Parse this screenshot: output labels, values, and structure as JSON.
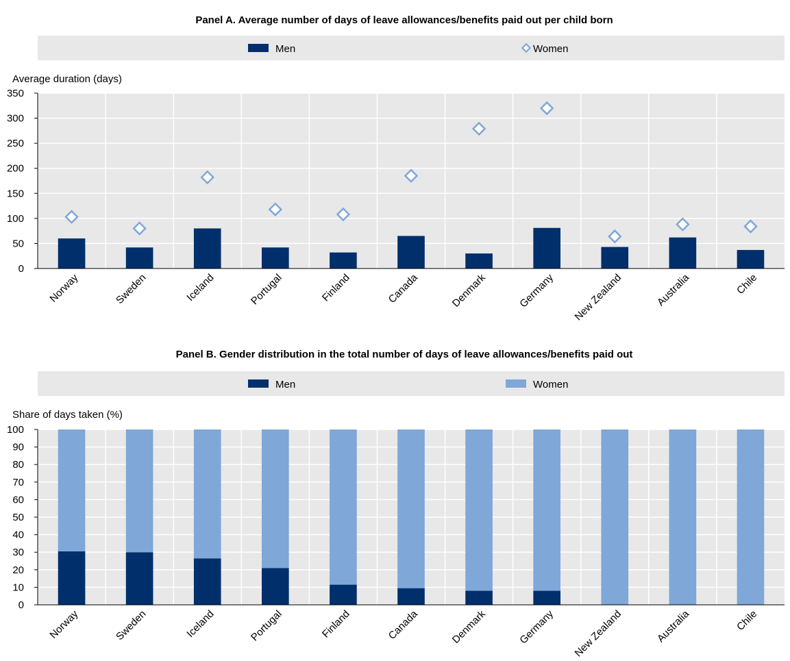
{
  "colors": {
    "men": "#002f6c",
    "women_bar": "#7fa7d8",
    "women_marker": "#7fa7d8",
    "plot_bg": "#e8e8e8",
    "legend_bg": "#e8e8e8",
    "gridline": "#ffffff",
    "axis": "#000000"
  },
  "chart_data": [
    {
      "type": "bar",
      "title": "Panel A. Average number of days of leave allowances/benefits paid out per child born",
      "ylabel": "Average duration (days)",
      "ylim": [
        0,
        350
      ],
      "yticks": [
        0,
        50,
        100,
        150,
        200,
        250,
        300,
        350
      ],
      "categories": [
        "Norway",
        "Sweden",
        "Iceland",
        "Portugal",
        "Finland",
        "Canada",
        "Denmark",
        "Germany",
        "New Zealand",
        "Australia",
        "Chile"
      ],
      "series": [
        {
          "name": "Men",
          "kind": "bar",
          "values": [
            60,
            42,
            80,
            42,
            32,
            65,
            30,
            81,
            43,
            62,
            37
          ]
        },
        {
          "name": "Women",
          "kind": "marker",
          "marker": "diamond-open",
          "values": [
            103,
            80,
            182,
            118,
            108,
            185,
            279,
            320,
            64,
            88,
            84
          ]
        }
      ],
      "grid": true,
      "legend": "top"
    },
    {
      "type": "bar",
      "stacked": true,
      "title": "Panel B. Gender distribution in the total number of days of leave allowances/benefits paid out",
      "ylabel": "Share of days taken (%)",
      "ylim": [
        0,
        100
      ],
      "yticks": [
        0,
        10,
        20,
        30,
        40,
        50,
        60,
        70,
        80,
        90,
        100
      ],
      "categories": [
        "Norway",
        "Sweden",
        "Iceland",
        "Portugal",
        "Finland",
        "Canada",
        "Denmark",
        "Germany",
        "New Zealand",
        "Australia",
        "Chile"
      ],
      "series": [
        {
          "name": "Men",
          "values": [
            30.5,
            30,
            26.5,
            21,
            11.5,
            9.5,
            8,
            8,
            0,
            0,
            0
          ]
        },
        {
          "name": "Women",
          "values": [
            69.5,
            70,
            73.5,
            79,
            88.5,
            90.5,
            92,
            92,
            100,
            100,
            100
          ]
        }
      ],
      "grid": true,
      "legend": "top"
    }
  ]
}
